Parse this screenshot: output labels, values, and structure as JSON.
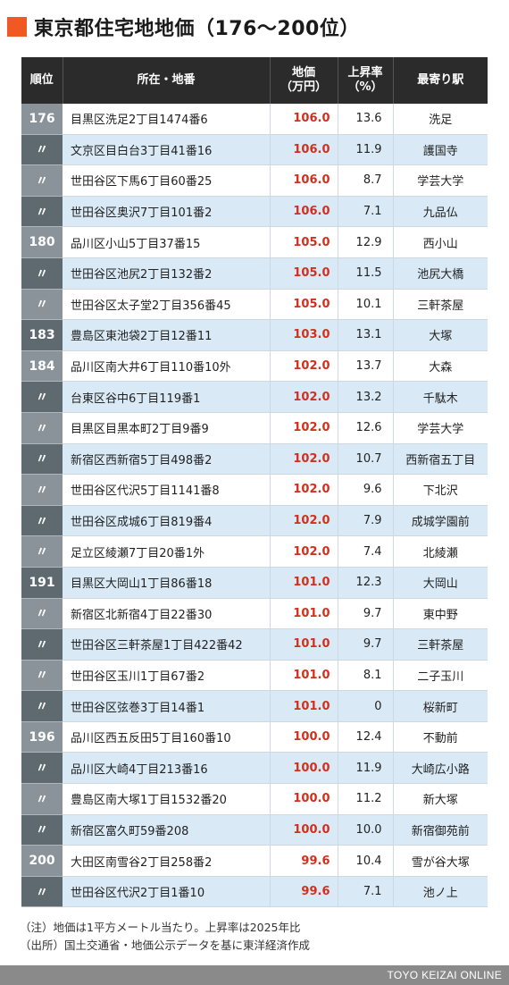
{
  "title": "東京都住宅地地価（176〜200位）",
  "headers": {
    "rank": "順位",
    "address": "所在・地番",
    "price_line1": "地価",
    "price_line2": "（万円）",
    "rate_line1": "上昇率",
    "rate_line2": "（%）",
    "station": "最寄り駅"
  },
  "rows": [
    {
      "rank": "176",
      "address": "目黒区洗足2丁目1474番6",
      "price": "106.0",
      "rate": "13.6",
      "station": "洗足"
    },
    {
      "rank": "〃",
      "address": "文京区目白台3丁目41番16",
      "price": "106.0",
      "rate": "11.9",
      "station": "護国寺"
    },
    {
      "rank": "〃",
      "address": "世田谷区下馬6丁目60番25",
      "price": "106.0",
      "rate": "8.7",
      "station": "学芸大学"
    },
    {
      "rank": "〃",
      "address": "世田谷区奥沢7丁目101番2",
      "price": "106.0",
      "rate": "7.1",
      "station": "九品仏"
    },
    {
      "rank": "180",
      "address": "品川区小山5丁目37番15",
      "price": "105.0",
      "rate": "12.9",
      "station": "西小山"
    },
    {
      "rank": "〃",
      "address": "世田谷区池尻2丁目132番2",
      "price": "105.0",
      "rate": "11.5",
      "station": "池尻大橋"
    },
    {
      "rank": "〃",
      "address": "世田谷区太子堂2丁目356番45",
      "price": "105.0",
      "rate": "10.1",
      "station": "三軒茶屋"
    },
    {
      "rank": "183",
      "address": "豊島区東池袋2丁目12番11",
      "price": "103.0",
      "rate": "13.1",
      "station": "大塚"
    },
    {
      "rank": "184",
      "address": "品川区南大井6丁目110番10外",
      "price": "102.0",
      "rate": "13.7",
      "station": "大森"
    },
    {
      "rank": "〃",
      "address": "台東区谷中6丁目119番1",
      "price": "102.0",
      "rate": "13.2",
      "station": "千駄木"
    },
    {
      "rank": "〃",
      "address": "目黒区目黒本町2丁目9番9",
      "price": "102.0",
      "rate": "12.6",
      "station": "学芸大学"
    },
    {
      "rank": "〃",
      "address": "新宿区西新宿5丁目498番2",
      "price": "102.0",
      "rate": "10.7",
      "station": "西新宿五丁目"
    },
    {
      "rank": "〃",
      "address": "世田谷区代沢5丁目1141番8",
      "price": "102.0",
      "rate": "9.6",
      "station": "下北沢"
    },
    {
      "rank": "〃",
      "address": "世田谷区成城6丁目819番4",
      "price": "102.0",
      "rate": "7.9",
      "station": "成城学園前"
    },
    {
      "rank": "〃",
      "address": "足立区綾瀬7丁目20番1外",
      "price": "102.0",
      "rate": "7.4",
      "station": "北綾瀬"
    },
    {
      "rank": "191",
      "address": "目黒区大岡山1丁目86番18",
      "price": "101.0",
      "rate": "12.3",
      "station": "大岡山"
    },
    {
      "rank": "〃",
      "address": "新宿区北新宿4丁目22番30",
      "price": "101.0",
      "rate": "9.7",
      "station": "東中野"
    },
    {
      "rank": "〃",
      "address": "世田谷区三軒茶屋1丁目422番42",
      "price": "101.0",
      "rate": "9.7",
      "station": "三軒茶屋"
    },
    {
      "rank": "〃",
      "address": "世田谷区玉川1丁目67番2",
      "price": "101.0",
      "rate": "8.1",
      "station": "二子玉川"
    },
    {
      "rank": "〃",
      "address": "世田谷区弦巻3丁目14番1",
      "price": "101.0",
      "rate": "0",
      "station": "桜新町"
    },
    {
      "rank": "196",
      "address": "品川区西五反田5丁目160番10",
      "price": "100.0",
      "rate": "12.4",
      "station": "不動前"
    },
    {
      "rank": "〃",
      "address": "品川区大崎4丁目213番16",
      "price": "100.0",
      "rate": "11.9",
      "station": "大崎広小路"
    },
    {
      "rank": "〃",
      "address": "豊島区南大塚1丁目1532番20",
      "price": "100.0",
      "rate": "11.2",
      "station": "新大塚"
    },
    {
      "rank": "〃",
      "address": "新宿区富久町59番208",
      "price": "100.0",
      "rate": "10.0",
      "station": "新宿御苑前"
    },
    {
      "rank": "200",
      "address": "大田区南雪谷2丁目258番2",
      "price": "99.6",
      "rate": "10.4",
      "station": "雪が谷大塚"
    },
    {
      "rank": "〃",
      "address": "世田谷区代沢2丁目1番10",
      "price": "99.6",
      "rate": "7.1",
      "station": "池ノ上"
    }
  ],
  "notes": [
    "（注）地価は1平方メートル当たり。上昇率は2025年比",
    "（出所）国土交通省・地価公示データを基に東洋経済作成"
  ],
  "footer": "TOYO KEIZAI ONLINE",
  "colors": {
    "accent": "#f05a22",
    "price": "#d2301c",
    "header": "#2b2b2b",
    "stripe": "#d9eaf6"
  }
}
